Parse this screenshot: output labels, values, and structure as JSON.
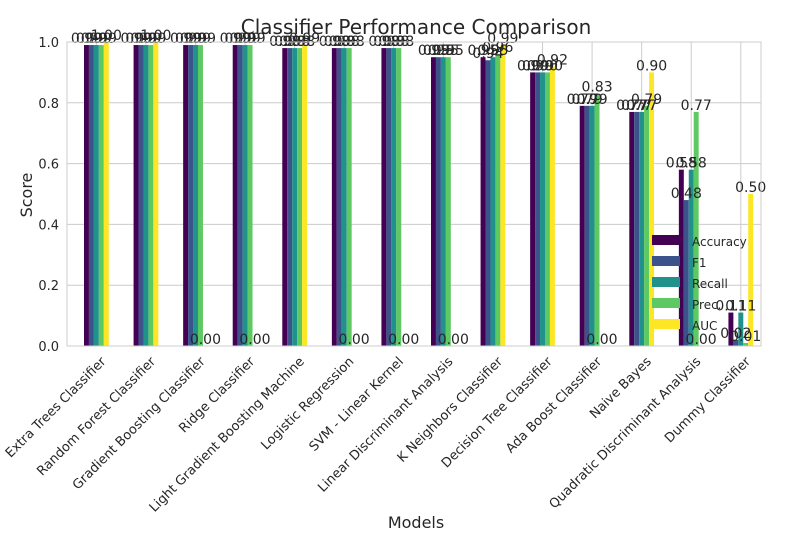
{
  "chart_data": {
    "type": "bar",
    "title": "Classifier Performance Comparison",
    "xlabel": "Models",
    "ylabel": "Score",
    "ylim": [
      0,
      1.0
    ],
    "yticks": [
      "0.0",
      "0.2",
      "0.4",
      "0.6",
      "0.8",
      "1.0"
    ],
    "grid": true,
    "legend_position": "lower-right",
    "categories": [
      "Extra Trees Classifier",
      "Random Forest Classifier",
      "Gradient Boosting Classifier",
      "Ridge Classifier",
      "Light Gradient Boosting Machine",
      "Logistic Regression",
      "SVM - Linear Kernel",
      "Linear Discriminant Analysis",
      "K Neighbors Classifier",
      "Decision Tree Classifier",
      "Ada Boost Classifier",
      "Naive Bayes",
      "Quadratic Discriminant Analysis",
      "Dummy Classifier"
    ],
    "series": [
      {
        "name": "Accuracy",
        "color": "#440154",
        "values": [
          0.99,
          0.99,
          0.99,
          0.99,
          0.98,
          0.98,
          0.98,
          0.95,
          0.95,
          0.9,
          0.79,
          0.77,
          0.58,
          0.11
        ],
        "labels": [
          "0.99",
          "0.99",
          "0.99",
          "0.99",
          "0.98",
          "0.98",
          "0.98",
          "0.95",
          "0.95",
          "0.90",
          "0.79",
          "0.77",
          "0.58",
          "0.11"
        ]
      },
      {
        "name": "F1",
        "color": "#3b528b",
        "values": [
          0.99,
          0.99,
          0.99,
          0.99,
          0.98,
          0.98,
          0.98,
          0.95,
          0.94,
          0.9,
          0.79,
          0.77,
          0.48,
          0.02
        ],
        "labels": [
          "0.99",
          "0.99",
          "0.99",
          "0.99",
          "0.98",
          "0.98",
          "0.98",
          "0.95",
          "0.94",
          "0.90",
          "0.79",
          "0.77",
          "0.48",
          "0.02"
        ]
      },
      {
        "name": "Recall",
        "color": "#21918c",
        "values": [
          0.99,
          0.99,
          0.99,
          0.99,
          0.98,
          0.98,
          0.98,
          0.95,
          0.95,
          0.9,
          0.79,
          0.77,
          0.58,
          0.11
        ],
        "labels": [
          "0.99",
          "0.99",
          "0.99",
          "0.99",
          "0.98",
          "0.98",
          "0.98",
          "0.95",
          "0.95",
          "0.90",
          "0.79",
          "0.77",
          "0.58",
          "0.11"
        ]
      },
      {
        "name": "Prec.",
        "color": "#5ec962",
        "values": [
          0.99,
          0.99,
          0.99,
          0.99,
          0.98,
          0.98,
          0.98,
          0.95,
          0.96,
          0.9,
          0.83,
          0.79,
          0.77,
          0.01
        ],
        "labels": [
          "0.99",
          "0.99",
          "0.99",
          "0.99",
          "0.98",
          "0.98",
          "0.98",
          "0.95",
          "0.96",
          "0.90",
          "0.83",
          "0.79",
          "0.77",
          "0.01"
        ]
      },
      {
        "name": "AUC",
        "color": "#fde725",
        "values": [
          1.0,
          1.0,
          0.0,
          0.0,
          0.99,
          0.0,
          0.0,
          0.0,
          0.99,
          0.92,
          0.0,
          0.9,
          0.0,
          0.5
        ],
        "labels": [
          "1.00",
          "1.00",
          "0.00",
          "0.00",
          "0.99",
          "0.00",
          "0.00",
          "0.00",
          "0.99",
          "0.92",
          "0.00",
          "0.90",
          "0.00",
          "0.50"
        ]
      }
    ]
  }
}
